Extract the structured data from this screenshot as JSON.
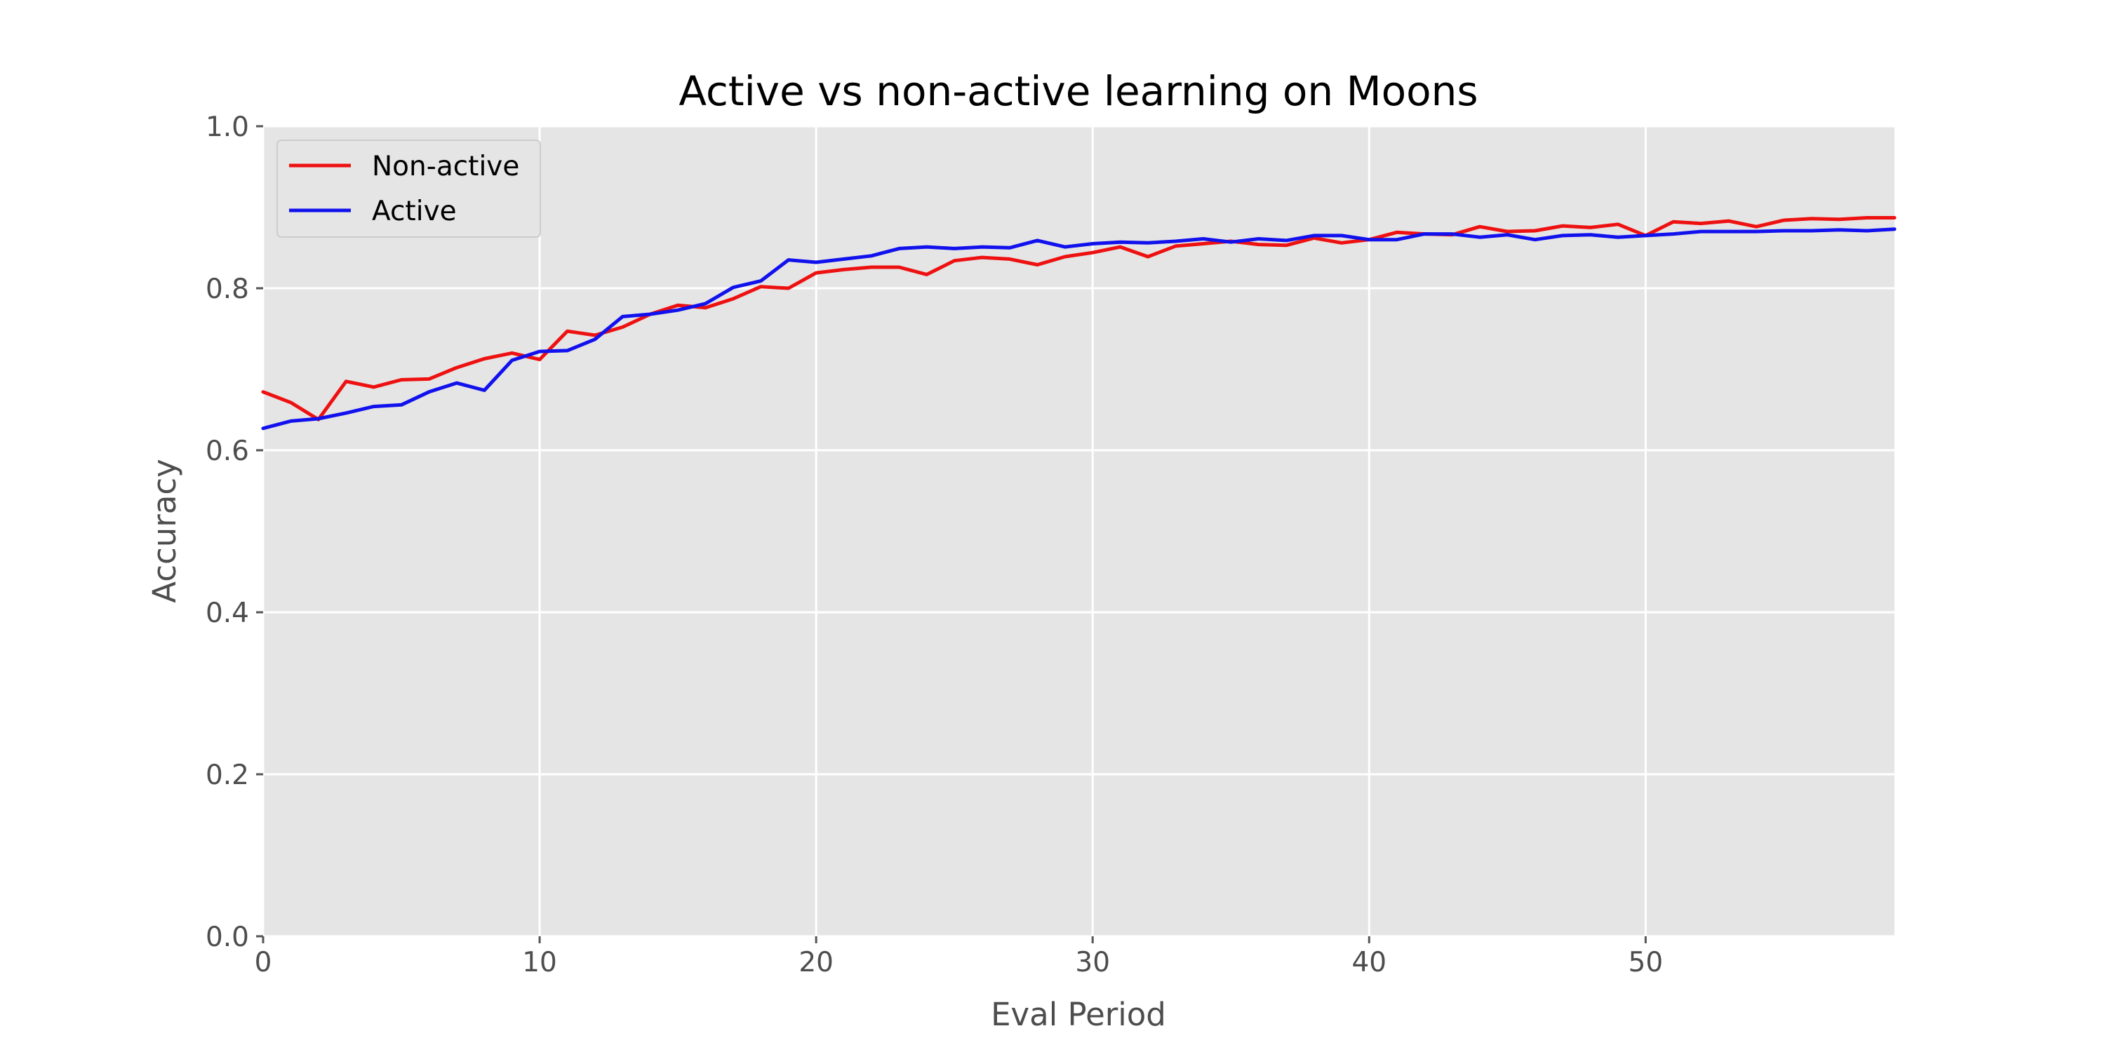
{
  "chart_data": {
    "type": "line",
    "title": "Active vs non-active learning on Moons",
    "xlabel": "Eval Period",
    "ylabel": "Accuracy",
    "xlim": [
      0,
      59
    ],
    "ylim": [
      0.0,
      1.0
    ],
    "xticks": [
      0,
      10,
      20,
      30,
      40,
      50
    ],
    "yticks": [
      0.0,
      0.2,
      0.4,
      0.6,
      0.8,
      1.0
    ],
    "xtick_labels": [
      "0",
      "10",
      "20",
      "30",
      "40",
      "50"
    ],
    "ytick_labels": [
      "0.0",
      "0.2",
      "0.4",
      "0.6",
      "0.8",
      "1.0"
    ],
    "grid": true,
    "legend_position": "top-left",
    "x": [
      0,
      1,
      2,
      3,
      4,
      5,
      6,
      7,
      8,
      9,
      10,
      11,
      12,
      13,
      14,
      15,
      16,
      17,
      18,
      19,
      20,
      21,
      22,
      23,
      24,
      25,
      26,
      27,
      28,
      29,
      30,
      31,
      32,
      33,
      34,
      35,
      36,
      37,
      38,
      39,
      40,
      41,
      42,
      43,
      44,
      45,
      46,
      47,
      48,
      49,
      50,
      51,
      52,
      53,
      54,
      55,
      56,
      57,
      58,
      59
    ],
    "series": [
      {
        "name": "Non-active",
        "color": "#ee1111",
        "values": [
          0.672,
          0.659,
          0.638,
          0.685,
          0.678,
          0.687,
          0.688,
          0.702,
          0.713,
          0.72,
          0.712,
          0.747,
          0.742,
          0.752,
          0.768,
          0.779,
          0.776,
          0.787,
          0.802,
          0.8,
          0.819,
          0.823,
          0.826,
          0.826,
          0.817,
          0.834,
          0.838,
          0.836,
          0.829,
          0.839,
          0.844,
          0.851,
          0.839,
          0.852,
          0.855,
          0.858,
          0.854,
          0.853,
          0.862,
          0.856,
          0.86,
          0.869,
          0.867,
          0.866,
          0.876,
          0.87,
          0.871,
          0.877,
          0.875,
          0.879,
          0.865,
          0.882,
          0.88,
          0.883,
          0.876,
          0.884,
          0.886,
          0.885,
          0.887,
          0.887
        ]
      },
      {
        "name": "Active",
        "color": "#1111ee",
        "values": [
          0.627,
          0.636,
          0.639,
          0.646,
          0.654,
          0.656,
          0.672,
          0.683,
          0.674,
          0.711,
          0.722,
          0.723,
          0.737,
          0.765,
          0.768,
          0.773,
          0.781,
          0.801,
          0.809,
          0.835,
          0.832,
          0.836,
          0.84,
          0.849,
          0.851,
          0.849,
          0.851,
          0.85,
          0.859,
          0.851,
          0.855,
          0.857,
          0.856,
          0.858,
          0.861,
          0.857,
          0.861,
          0.859,
          0.865,
          0.865,
          0.86,
          0.86,
          0.867,
          0.867,
          0.863,
          0.866,
          0.86,
          0.865,
          0.866,
          0.863,
          0.865,
          0.867,
          0.87,
          0.87,
          0.87,
          0.871,
          0.871,
          0.872,
          0.871,
          0.873
        ]
      }
    ]
  }
}
